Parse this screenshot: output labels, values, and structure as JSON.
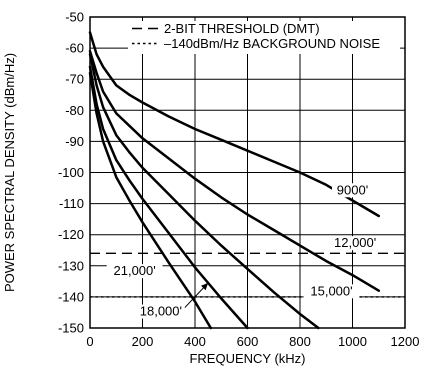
{
  "chart_data": {
    "type": "line",
    "title": "",
    "xlabel": "FREQUENCY (kHz)",
    "ylabel": "POWER SPECTRAL DENSITY (dBm/Hz)",
    "xlim": [
      0,
      1200
    ],
    "ylim": [
      -150,
      -50
    ],
    "xticks": [
      0,
      200,
      400,
      600,
      800,
      1000,
      1200
    ],
    "yticks": [
      -50,
      -60,
      -70,
      -80,
      -90,
      -100,
      -110,
      -120,
      -130,
      -140,
      -150
    ],
    "grid": true,
    "legend_position": "top-right",
    "legend": [
      {
        "style": "dashed",
        "label": "2-BIT THRESHOLD (DMT)"
      },
      {
        "style": "dotted",
        "label": "–140dBm/Hz BACKGROUND NOISE"
      }
    ],
    "reference_lines": [
      {
        "name": "2-BIT THRESHOLD (DMT)",
        "style": "dashed",
        "y": -126
      },
      {
        "name": "–140dBm/Hz BACKGROUND NOISE",
        "style": "dotted",
        "y": -140
      }
    ],
    "series": [
      {
        "name": "9000'",
        "x": [
          0,
          25,
          50,
          100,
          150,
          200,
          300,
          400,
          500,
          600,
          700,
          800,
          900,
          1000,
          1100
        ],
        "y": [
          -55,
          -62,
          -66,
          -72,
          -75,
          -77.5,
          -82,
          -86,
          -89.5,
          -93,
          -96.5,
          -100,
          -104,
          -109,
          -114
        ]
      },
      {
        "name": "12,000'",
        "x": [
          0,
          25,
          50,
          100,
          150,
          200,
          300,
          400,
          500,
          600,
          700,
          800,
          900,
          1000,
          1100
        ],
        "y": [
          -61,
          -68,
          -74,
          -81,
          -85,
          -89,
          -95.5,
          -102,
          -108,
          -113.5,
          -118.5,
          -123.5,
          -128.5,
          -133,
          -138
        ]
      },
      {
        "name": "15,000'",
        "x": [
          0,
          25,
          50,
          100,
          150,
          200,
          300,
          400,
          500,
          600,
          700,
          800,
          870
        ],
        "y": [
          -62,
          -72,
          -79,
          -88,
          -93.5,
          -98.5,
          -107,
          -115.5,
          -123.5,
          -131,
          -138.5,
          -145.5,
          -150
        ]
      },
      {
        "name": "18,000'",
        "x": [
          0,
          25,
          50,
          100,
          150,
          200,
          300,
          400,
          500,
          600
        ],
        "y": [
          -66,
          -78,
          -86,
          -96,
          -102.5,
          -108.5,
          -119.5,
          -130.5,
          -140.5,
          -150
        ]
      },
      {
        "name": "21,000'",
        "x": [
          0,
          25,
          50,
          100,
          150,
          200,
          300,
          400,
          460
        ],
        "y": [
          -68,
          -81,
          -90,
          -101.5,
          -109,
          -116,
          -129,
          -141.5,
          -150
        ]
      }
    ],
    "labels": [
      {
        "text": "9000'",
        "x": 1000,
        "y": -107
      },
      {
        "text": "12,000'",
        "x": 1010,
        "y": -124
      },
      {
        "text": "15,000'",
        "x": 920,
        "y": -139.5
      },
      {
        "text": "18,000'",
        "x": 270,
        "y": -146
      },
      {
        "text": "21,000'",
        "x": 170,
        "y": -133
      }
    ]
  }
}
